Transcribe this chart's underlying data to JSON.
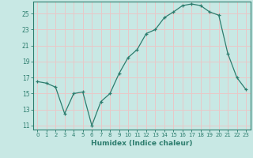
{
  "title": "",
  "xlabel": "Humidex (Indice chaleur)",
  "ylabel": "",
  "x": [
    0,
    1,
    2,
    3,
    4,
    5,
    6,
    7,
    8,
    9,
    10,
    11,
    12,
    13,
    14,
    15,
    16,
    17,
    18,
    19,
    20,
    21,
    22,
    23
  ],
  "y": [
    16.5,
    16.3,
    15.8,
    12.5,
    15.0,
    15.2,
    11.0,
    14.0,
    15.0,
    17.5,
    19.5,
    20.5,
    22.5,
    23.0,
    24.5,
    25.2,
    26.0,
    26.2,
    26.0,
    25.2,
    24.8,
    20.0,
    17.0,
    15.5
  ],
  "line_color": "#2d7d6e",
  "marker": "+",
  "background_color": "#c8e8e4",
  "grid_color": "#e8c8c8",
  "ylim": [
    10.5,
    26.5
  ],
  "yticks": [
    11,
    13,
    15,
    17,
    19,
    21,
    23,
    25
  ],
  "xticks": [
    0,
    1,
    2,
    3,
    4,
    5,
    6,
    7,
    8,
    9,
    10,
    11,
    12,
    13,
    14,
    15,
    16,
    17,
    18,
    19,
    20,
    21,
    22,
    23
  ],
  "tick_color": "#2d7d6e",
  "label_color": "#2d7d6e",
  "axis_color": "#2d7d6e",
  "tick_fontsize": 5.0,
  "xlabel_fontsize": 6.5
}
